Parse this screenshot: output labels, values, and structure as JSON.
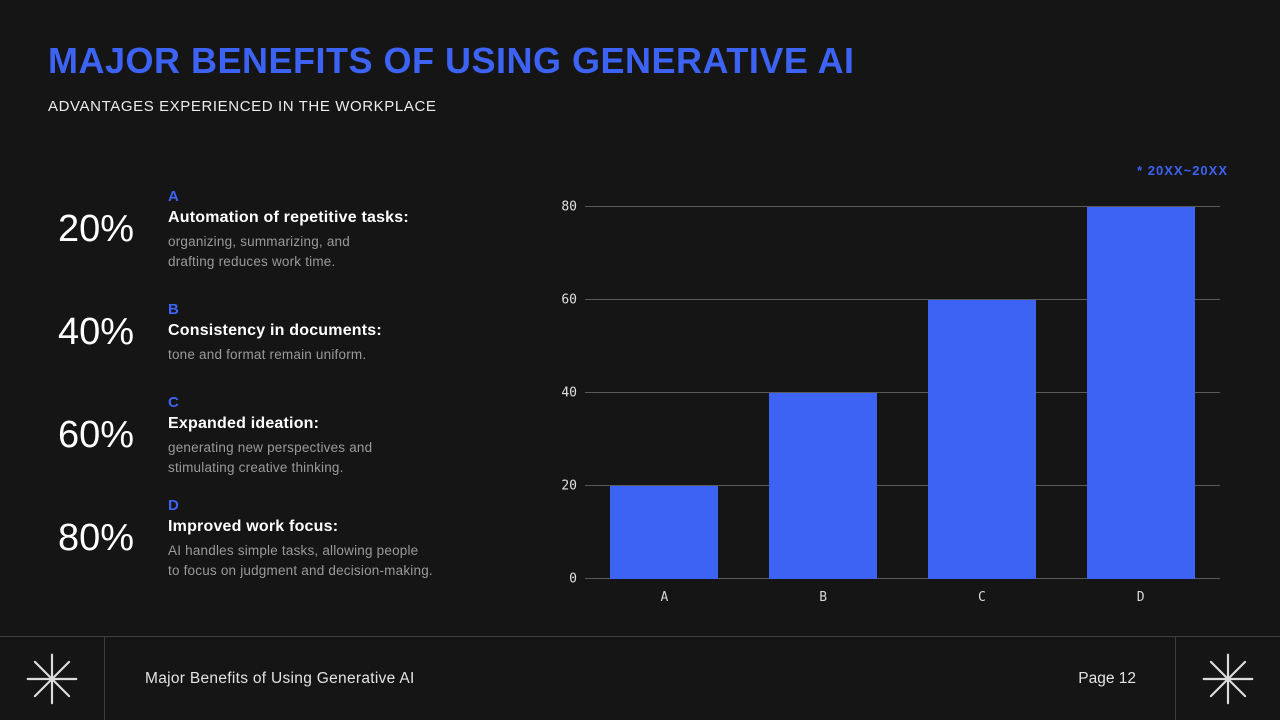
{
  "colors": {
    "accent": "#3D63F4",
    "background": "#151515",
    "grid": "#5a5a5a"
  },
  "header": {
    "title": "MAJOR BENEFITS OF USING GENERATIVE AI",
    "subtitle": "ADVANTAGES EXPERIENCED IN THE WORKPLACE"
  },
  "benefits": [
    {
      "percent": "20%",
      "letter": "A",
      "heading": "Automation of repetitive tasks:",
      "description": "organizing, summarizing, and\ndrafting reduces work time."
    },
    {
      "percent": "40%",
      "letter": "B",
      "heading": "Consistency in documents:",
      "description": "tone and format remain uniform."
    },
    {
      "percent": "60%",
      "letter": "C",
      "heading": "Expanded ideation:",
      "description": "generating new perspectives and\nstimulating creative thinking."
    },
    {
      "percent": "80%",
      "letter": "D",
      "heading": "Improved work focus:",
      "description": "AI handles simple tasks, allowing people\nto focus on judgment and decision-making."
    }
  ],
  "chart_data": {
    "type": "bar",
    "categories": [
      "A",
      "B",
      "C",
      "D"
    ],
    "values": [
      20,
      40,
      60,
      80
    ],
    "title": "",
    "xlabel": "",
    "ylabel": "",
    "ylim": [
      0,
      80
    ],
    "yticks": [
      0,
      20,
      40,
      60,
      80
    ],
    "grid": true,
    "legend": false,
    "bar_color": "#3D63F4",
    "note": "* 20XX~20XX"
  },
  "footer": {
    "title": "Major Benefits of Using Generative AI",
    "page": "Page 12"
  }
}
